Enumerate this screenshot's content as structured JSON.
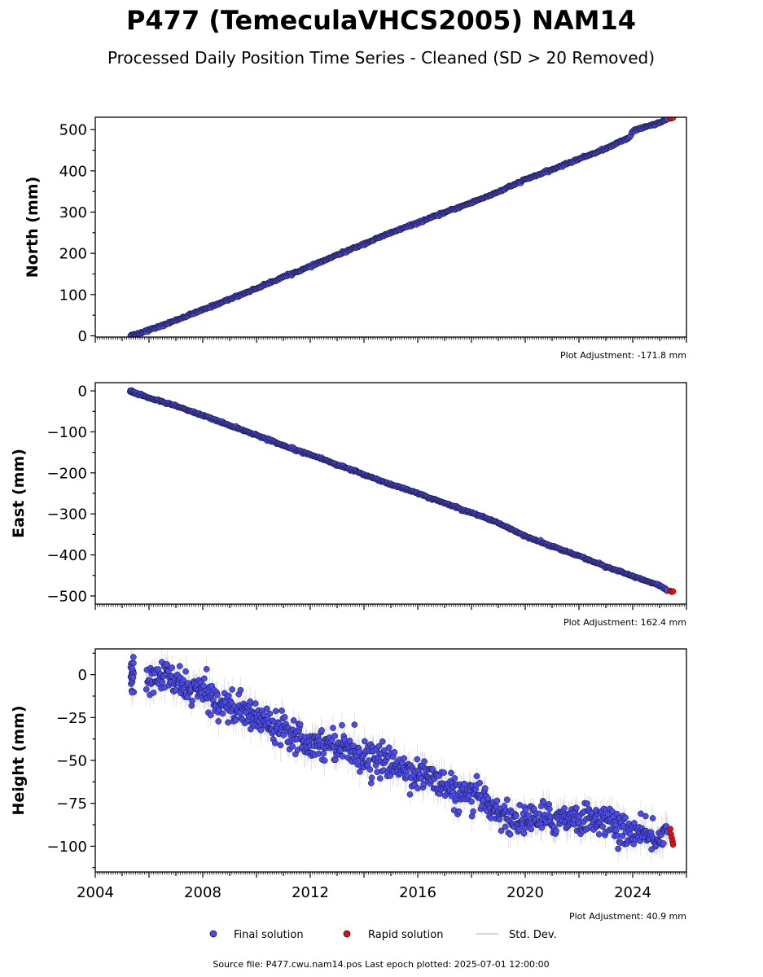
{
  "figure": {
    "title": "P477 (TemeculaVHCS2005) NAM14",
    "subtitle": "Processed Daily Position Time Series - Cleaned (SD > 20 Removed)",
    "footer": "Source file: P477.cwu.nam14.pos  Last epoch plotted: 2025-07-01 12:00:00"
  },
  "legend": {
    "final": "Final solution",
    "rapid": "Rapid solution",
    "std": "Std. Dev."
  },
  "colors": {
    "final": "#4a4aee",
    "rapid": "#e01010",
    "std": "#b0b0b0",
    "edge": "#111111"
  },
  "chart_data": [
    {
      "type": "scatter",
      "panel": "north",
      "ylabel": "North (mm)",
      "ylim": [
        -3,
        530
      ],
      "xlim": [
        2004.0,
        2026.0
      ],
      "yticks": [
        0,
        100,
        200,
        300,
        400,
        500
      ],
      "adjustment": "Plot Adjustment: -171.8 mm",
      "series": [
        {
          "name": "Final solution",
          "x": [
            2005.3,
            2005.4,
            2005.9,
            2006.5,
            2007.0,
            2008.0,
            2009.0,
            2010.0,
            2011.0,
            2012.0,
            2013.0,
            2014.0,
            2015.0,
            2016.0,
            2017.0,
            2018.0,
            2019.0,
            2020.0,
            2021.0,
            2022.0,
            2023.0,
            2023.9,
            2024.0,
            2025.0,
            2025.3
          ],
          "y": [
            0,
            2,
            12,
            25,
            38,
            63,
            89,
            115,
            143,
            168,
            196,
            223,
            250,
            274,
            299,
            323,
            349,
            379,
            403,
            429,
            454,
            482,
            497,
            517,
            526
          ]
        },
        {
          "name": "Rapid solution",
          "x": [
            2025.4,
            2025.45,
            2025.5
          ],
          "y": [
            527,
            528,
            529
          ]
        }
      ]
    },
    {
      "type": "scatter",
      "panel": "east",
      "ylabel": "East (mm)",
      "ylim": [
        -520,
        20
      ],
      "xlim": [
        2004.0,
        2026.0
      ],
      "yticks": [
        0,
        -100,
        -200,
        -300,
        -400,
        -500
      ],
      "adjustment": "Plot Adjustment: 162.4 mm",
      "series": [
        {
          "name": "Final solution",
          "x": [
            2005.3,
            2005.4,
            2005.9,
            2006.5,
            2007.0,
            2008.0,
            2009.0,
            2010.0,
            2011.0,
            2012.0,
            2013.0,
            2014.0,
            2015.0,
            2016.0,
            2017.0,
            2018.0,
            2019.0,
            2020.0,
            2021.0,
            2022.0,
            2023.0,
            2024.0,
            2025.0,
            2025.3
          ],
          "y": [
            0,
            -3,
            -15,
            -27,
            -37,
            -60,
            -84,
            -108,
            -133,
            -155,
            -180,
            -204,
            -228,
            -250,
            -274,
            -297,
            -322,
            -354,
            -379,
            -403,
            -428,
            -452,
            -475,
            -487
          ]
        },
        {
          "name": "Rapid solution",
          "x": [
            2025.4,
            2025.45,
            2025.5
          ],
          "y": [
            -488,
            -490,
            -489
          ]
        }
      ]
    },
    {
      "type": "scatter",
      "panel": "height",
      "ylabel": "Height (mm)",
      "ylim": [
        -115,
        15
      ],
      "xlim": [
        2004.0,
        2026.0
      ],
      "yticks": [
        0,
        -25,
        -50,
        -75,
        -100
      ],
      "xticks": [
        2004,
        2008,
        2012,
        2016,
        2020,
        2024
      ],
      "adjustment": "Plot Adjustment: 40.9 mm",
      "series": [
        {
          "name": "Final solution",
          "x": [
            2005.3,
            2005.9,
            2006.5,
            2007.0,
            2007.5,
            2008.0,
            2008.5,
            2009.0,
            2009.5,
            2010.0,
            2010.5,
            2011.0,
            2011.5,
            2012.0,
            2012.5,
            2013.0,
            2013.5,
            2014.0,
            2014.5,
            2015.0,
            2015.5,
            2016.0,
            2016.5,
            2017.0,
            2017.5,
            2018.0,
            2018.5,
            2019.0,
            2019.5,
            2020.0,
            2020.5,
            2021.0,
            2021.5,
            2022.0,
            2022.5,
            2023.0,
            2023.5,
            2024.0,
            2024.5,
            2025.0,
            2025.3
          ],
          "y": [
            0,
            -5,
            0,
            -5,
            -8,
            -10,
            -15,
            -18,
            -22,
            -25,
            -28,
            -30,
            -35,
            -40,
            -40,
            -40,
            -43,
            -48,
            -50,
            -52,
            -55,
            -58,
            -60,
            -65,
            -70,
            -72,
            -72,
            -80,
            -85,
            -85,
            -83,
            -85,
            -82,
            -85,
            -83,
            -85,
            -90,
            -92,
            -95,
            -95,
            -92
          ]
        },
        {
          "name": "Rapid solution",
          "x": [
            2025.4,
            2025.42,
            2025.45,
            2025.48,
            2025.5
          ],
          "y": [
            -90,
            -93,
            -95,
            -97,
            -99
          ]
        }
      ]
    }
  ]
}
